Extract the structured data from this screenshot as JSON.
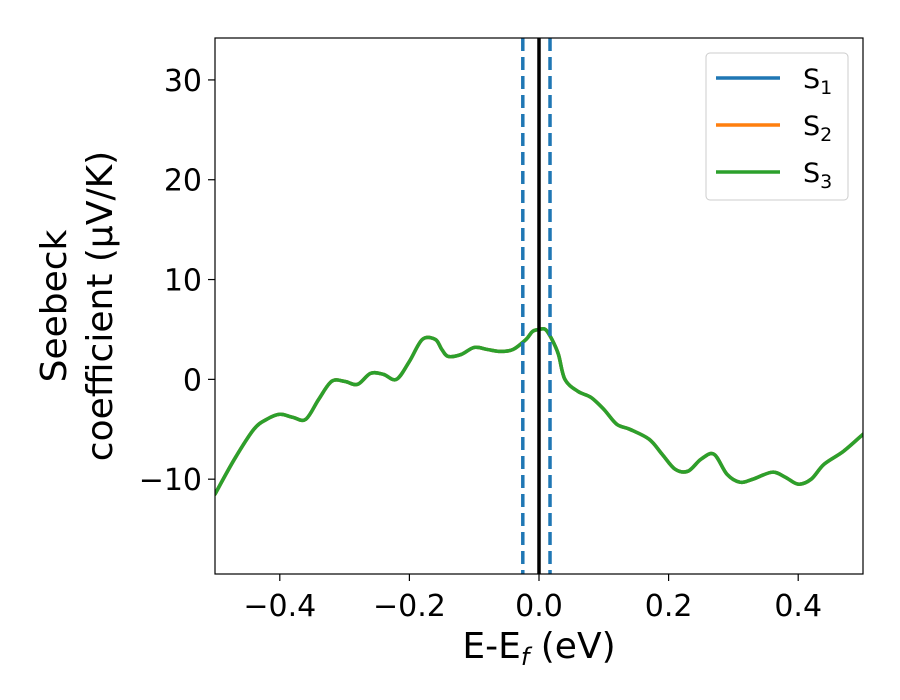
{
  "chart_data": {
    "type": "line",
    "xlabel": "E-E",
    "xlabel_sub": "f",
    "xlabel_unit": " (eV)",
    "ylabel_line1": "Seebeck",
    "ylabel_line2": "coefficient  (μV/K)",
    "xlim": [
      -0.5,
      0.5
    ],
    "ylim": [
      -19.5,
      34.2
    ],
    "x_ticks": [
      -0.4,
      -0.2,
      0.0,
      0.2,
      0.4
    ],
    "x_tick_labels": [
      "−0.4",
      "−0.2",
      "0.0",
      "0.2",
      "0.4"
    ],
    "y_ticks": [
      -10,
      0,
      10,
      20,
      30
    ],
    "y_tick_labels": [
      "−10",
      "0",
      "10",
      "20",
      "30"
    ],
    "grid": false,
    "legend_position": "top-right",
    "vertical_lines": [
      {
        "x": -0.025,
        "style": "dashed",
        "color": "#1f77b4"
      },
      {
        "x": 0.0,
        "style": "solid",
        "color": "#000000"
      },
      {
        "x": 0.017,
        "style": "dashed",
        "color": "#1f77b4"
      }
    ],
    "series": [
      {
        "name": "S",
        "sub": "1",
        "color": "#1f77b4",
        "x": [
          -0.5,
          -0.47,
          -0.44,
          -0.42,
          -0.4,
          -0.38,
          -0.36,
          -0.34,
          -0.32,
          -0.3,
          -0.28,
          -0.26,
          -0.24,
          -0.22,
          -0.2,
          -0.18,
          -0.16,
          -0.15,
          -0.14,
          -0.12,
          -0.1,
          -0.08,
          -0.06,
          -0.04,
          -0.02,
          -0.01,
          0.0,
          0.01,
          0.02,
          0.03,
          0.04,
          0.06,
          0.08,
          0.1,
          0.12,
          0.14,
          0.17,
          0.19,
          0.21,
          0.23,
          0.25,
          0.27,
          0.29,
          0.31,
          0.33,
          0.36,
          0.38,
          0.4,
          0.42,
          0.44,
          0.47,
          0.5
        ],
        "y": [
          -11.5,
          -8.0,
          -5.0,
          -4.0,
          -3.5,
          -3.8,
          -4.0,
          -2.0,
          -0.2,
          -0.2,
          -0.5,
          0.6,
          0.5,
          0.0,
          1.8,
          4.0,
          4.0,
          3.0,
          2.3,
          2.5,
          3.2,
          3.0,
          2.8,
          3.0,
          4.0,
          4.8,
          5.0,
          5.0,
          4.0,
          2.5,
          0.0,
          -1.2,
          -1.8,
          -3.0,
          -4.5,
          -5.0,
          -6.0,
          -7.5,
          -9.0,
          -9.2,
          -8.0,
          -7.5,
          -9.5,
          -10.3,
          -10.0,
          -9.3,
          -9.8,
          -10.5,
          -10.0,
          -8.5,
          -7.2,
          -5.5
        ]
      },
      {
        "name": "S",
        "sub": "2",
        "color": "#ff7f0e",
        "x": [
          -0.5,
          -0.47,
          -0.44,
          -0.42,
          -0.4,
          -0.38,
          -0.36,
          -0.34,
          -0.32,
          -0.3,
          -0.28,
          -0.26,
          -0.24,
          -0.22,
          -0.2,
          -0.18,
          -0.16,
          -0.15,
          -0.14,
          -0.12,
          -0.1,
          -0.08,
          -0.06,
          -0.04,
          -0.02,
          -0.01,
          0.0,
          0.01,
          0.02,
          0.03,
          0.04,
          0.06,
          0.08,
          0.1,
          0.12,
          0.14,
          0.17,
          0.19,
          0.21,
          0.23,
          0.25,
          0.27,
          0.29,
          0.31,
          0.33,
          0.36,
          0.38,
          0.4,
          0.42,
          0.44,
          0.47,
          0.5
        ],
        "y": [
          -11.5,
          -8.0,
          -5.0,
          -4.0,
          -3.5,
          -3.8,
          -4.0,
          -2.0,
          -0.2,
          -0.2,
          -0.5,
          0.6,
          0.5,
          0.0,
          1.8,
          4.0,
          4.0,
          3.0,
          2.3,
          2.5,
          3.2,
          3.0,
          2.8,
          3.0,
          4.0,
          4.8,
          5.0,
          5.0,
          4.0,
          2.5,
          0.0,
          -1.2,
          -1.8,
          -3.0,
          -4.5,
          -5.0,
          -6.0,
          -7.5,
          -9.0,
          -9.2,
          -8.0,
          -7.5,
          -9.5,
          -10.3,
          -10.0,
          -9.3,
          -9.8,
          -10.5,
          -10.0,
          -8.5,
          -7.2,
          -5.5
        ]
      },
      {
        "name": "S",
        "sub": "3",
        "color": "#2ca02c",
        "x": [
          -0.5,
          -0.47,
          -0.44,
          -0.42,
          -0.4,
          -0.38,
          -0.36,
          -0.34,
          -0.32,
          -0.3,
          -0.28,
          -0.26,
          -0.24,
          -0.22,
          -0.2,
          -0.18,
          -0.16,
          -0.15,
          -0.14,
          -0.12,
          -0.1,
          -0.08,
          -0.06,
          -0.04,
          -0.02,
          -0.01,
          0.0,
          0.01,
          0.02,
          0.03,
          0.04,
          0.06,
          0.08,
          0.1,
          0.12,
          0.14,
          0.17,
          0.19,
          0.21,
          0.23,
          0.25,
          0.27,
          0.29,
          0.31,
          0.33,
          0.36,
          0.38,
          0.4,
          0.42,
          0.44,
          0.47,
          0.5
        ],
        "y": [
          -11.5,
          -8.0,
          -5.0,
          -4.0,
          -3.5,
          -3.8,
          -4.0,
          -2.0,
          -0.2,
          -0.2,
          -0.5,
          0.6,
          0.5,
          0.0,
          1.8,
          4.0,
          4.0,
          3.0,
          2.3,
          2.5,
          3.2,
          3.0,
          2.8,
          3.0,
          4.0,
          4.8,
          5.0,
          5.0,
          4.0,
          2.5,
          0.0,
          -1.2,
          -1.8,
          -3.0,
          -4.5,
          -5.0,
          -6.0,
          -7.5,
          -9.0,
          -9.2,
          -8.0,
          -7.5,
          -9.5,
          -10.3,
          -10.0,
          -9.3,
          -9.8,
          -10.5,
          -10.0,
          -8.5,
          -7.2,
          -5.5
        ]
      }
    ]
  }
}
